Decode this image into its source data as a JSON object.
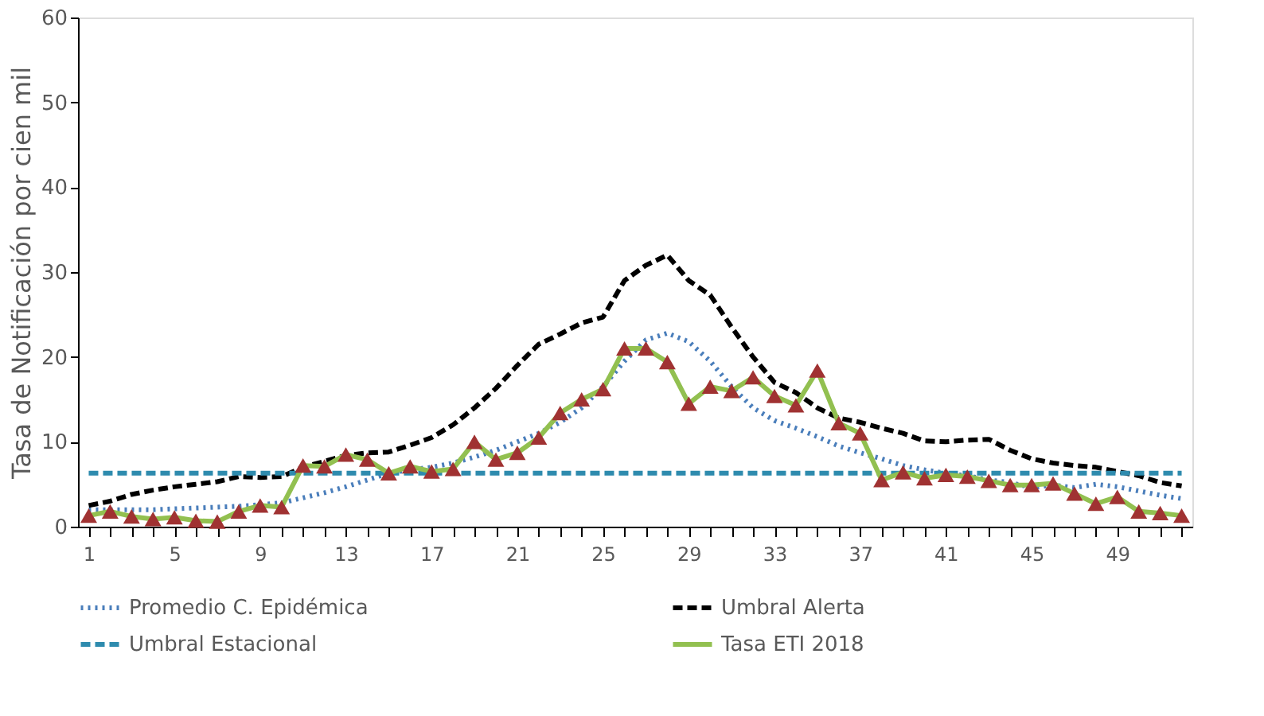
{
  "chart_data": {
    "type": "line",
    "ylabel": "Tasa de Notificación por cien mil",
    "categories": [
      "1",
      null,
      null,
      null,
      "5",
      null,
      null,
      null,
      "9",
      null,
      null,
      null,
      "13",
      null,
      null,
      null,
      "17",
      null,
      null,
      null,
      "21",
      null,
      null,
      null,
      "25",
      null,
      null,
      null,
      "29",
      null,
      null,
      null,
      "33",
      null,
      null,
      null,
      "37",
      null,
      null,
      null,
      "41",
      null,
      null,
      null,
      "45",
      null,
      null,
      null,
      "49",
      null,
      null,
      null
    ],
    "ylim": [
      0,
      60
    ],
    "yticks": [
      0,
      10,
      20,
      30,
      40,
      50,
      60
    ],
    "grid": false,
    "legend": "bottom",
    "series": [
      {
        "name": "Promedio  C. Epidémica",
        "color": "#4a7ebb",
        "line_style": "dotted",
        "marker": "none",
        "values": [
          2.0,
          2.0,
          2.0,
          2.0,
          2.1,
          2.2,
          2.3,
          2.4,
          2.6,
          2.8,
          3.4,
          4.0,
          4.7,
          5.5,
          6.3,
          6.7,
          7.0,
          7.5,
          8.2,
          9.0,
          10.0,
          11.0,
          12.3,
          14.0,
          16.5,
          19.5,
          22.0,
          22.8,
          21.8,
          19.5,
          16.5,
          14.0,
          12.5,
          11.6,
          10.6,
          9.5,
          8.7,
          8.0,
          7.2,
          6.7,
          6.3,
          6.0,
          5.5,
          5.2,
          4.6,
          4.9,
          4.6,
          5.0,
          4.7,
          4.2,
          3.7,
          3.3
        ]
      },
      {
        "name": "Umbral Alerta",
        "color": "#000000",
        "line_style": "dashed",
        "marker": "none",
        "values": [
          2.5,
          3.0,
          3.8,
          4.3,
          4.7,
          5.0,
          5.3,
          5.9,
          5.8,
          5.9,
          7.0,
          7.7,
          8.4,
          8.7,
          8.8,
          9.6,
          10.5,
          12.0,
          14.0,
          16.3,
          19.0,
          21.5,
          22.7,
          24.0,
          24.7,
          29.0,
          30.8,
          32.0,
          29.0,
          27.3,
          23.5,
          20.0,
          17.0,
          15.8,
          14.0,
          12.8,
          12.3,
          11.6,
          11.0,
          10.1,
          10.0,
          10.2,
          10.3,
          9.0,
          8.0,
          7.5,
          7.2,
          7.0,
          6.5,
          6.0,
          5.2,
          4.8
        ]
      },
      {
        "name": "Umbral Estacional",
        "color": "#2e8bae",
        "line_style": "dashed",
        "marker": "none",
        "values": [
          6.3,
          6.3,
          6.3,
          6.3,
          6.3,
          6.3,
          6.3,
          6.3,
          6.3,
          6.3,
          6.3,
          6.3,
          6.3,
          6.3,
          6.3,
          6.3,
          6.3,
          6.3,
          6.3,
          6.3,
          6.3,
          6.3,
          6.3,
          6.3,
          6.3,
          6.3,
          6.3,
          6.3,
          6.3,
          6.3,
          6.3,
          6.3,
          6.3,
          6.3,
          6.3,
          6.3,
          6.3,
          6.3,
          6.3,
          6.3,
          6.3,
          6.3,
          6.3,
          6.3,
          6.3,
          6.3,
          6.3,
          6.3,
          6.3,
          6.3,
          6.3,
          6.3
        ]
      },
      {
        "name": "Tasa ETI  2018",
        "color": "#92c050",
        "line_style": "solid",
        "marker": "triangle",
        "values": [
          1.3,
          1.8,
          1.2,
          0.9,
          1.1,
          0.7,
          0.6,
          1.8,
          2.5,
          2.3,
          7.2,
          7.1,
          8.5,
          7.9,
          6.3,
          7.1,
          6.5,
          6.8,
          10.0,
          7.9,
          8.7,
          10.5,
          13.4,
          15.0,
          16.2,
          21.0,
          21.0,
          19.4,
          14.5,
          16.5,
          16.0,
          17.6,
          15.4,
          14.3,
          18.4,
          12.2,
          11.0,
          5.5,
          6.4,
          5.7,
          6.1,
          5.9,
          5.4,
          4.9,
          4.9,
          5.1,
          3.9,
          2.7,
          3.5,
          1.8,
          1.6,
          1.3
        ]
      }
    ]
  }
}
